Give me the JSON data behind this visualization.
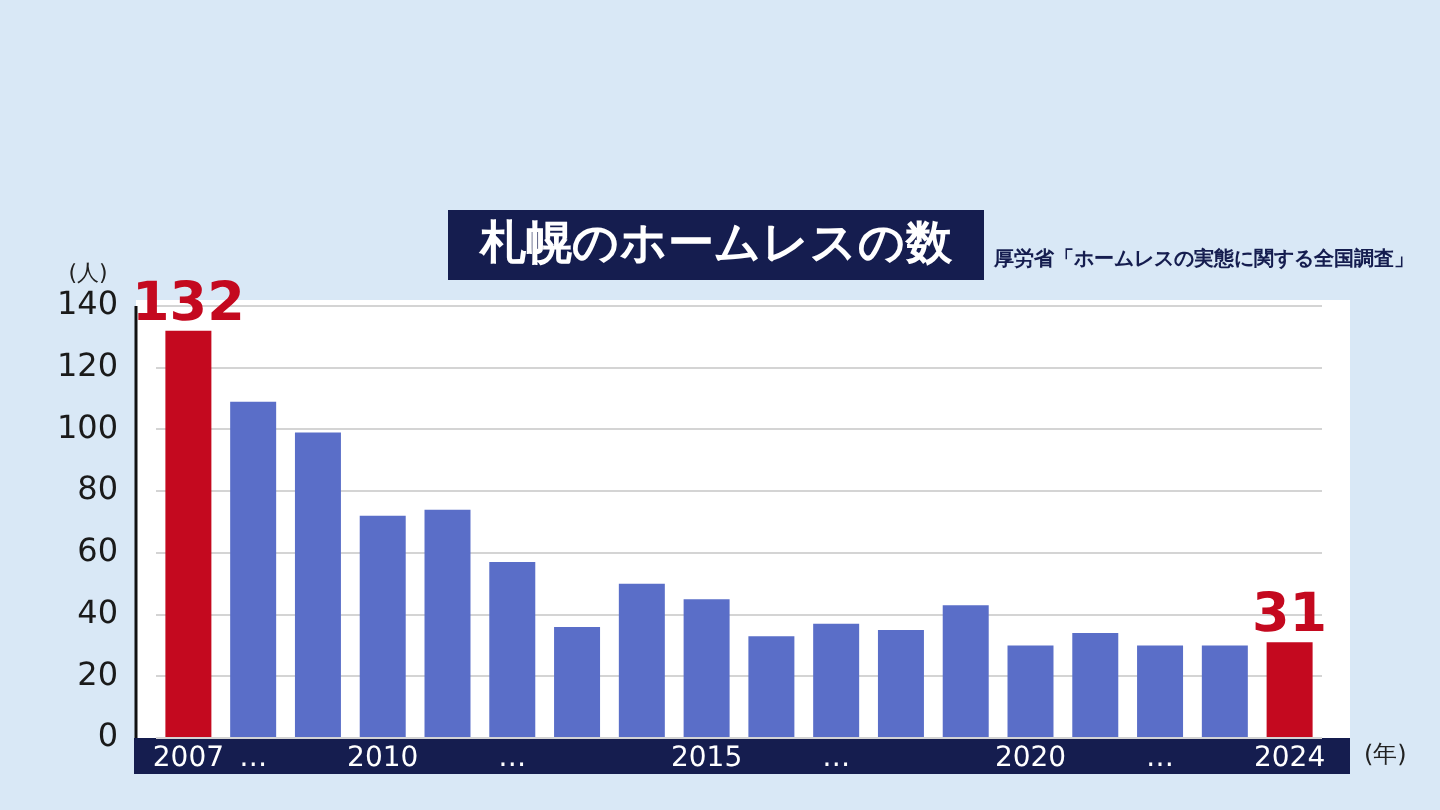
{
  "chart_data": {
    "type": "bar",
    "title": "札幌のホームレスの数",
    "xlabel": "(年)",
    "ylabel": "(人)",
    "annotations": [
      "厚労省「ホームレスの実態に関する全国調査」"
    ],
    "categories": [
      "2007",
      "…",
      null,
      "2010",
      null,
      "…",
      null,
      null,
      "2015",
      null,
      "…",
      null,
      null,
      "2020",
      null,
      "…",
      null,
      "2024"
    ],
    "values": [
      132,
      109,
      99,
      72,
      74,
      57,
      36,
      50,
      45,
      33,
      37,
      35,
      43,
      30,
      34,
      30,
      30,
      31
    ],
    "colors": [
      "#c4091f",
      "#5a6ec8",
      "#5a6ec8",
      "#5a6ec8",
      "#5a6ec8",
      "#5a6ec8",
      "#5a6ec8",
      "#5a6ec8",
      "#5a6ec8",
      "#5a6ec8",
      "#5a6ec8",
      "#5a6ec8",
      "#5a6ec8",
      "#5a6ec8",
      "#5a6ec8",
      "#5a6ec8",
      "#5a6ec8",
      "#c4091f"
    ],
    "value_labels": [
      "132",
      null,
      null,
      null,
      null,
      null,
      null,
      null,
      null,
      null,
      null,
      null,
      null,
      null,
      null,
      null,
      null,
      "31"
    ],
    "ylim": [
      0,
      140
    ],
    "yticks": [
      0,
      20,
      40,
      60,
      80,
      100,
      120,
      140
    ],
    "grid": "y"
  }
}
